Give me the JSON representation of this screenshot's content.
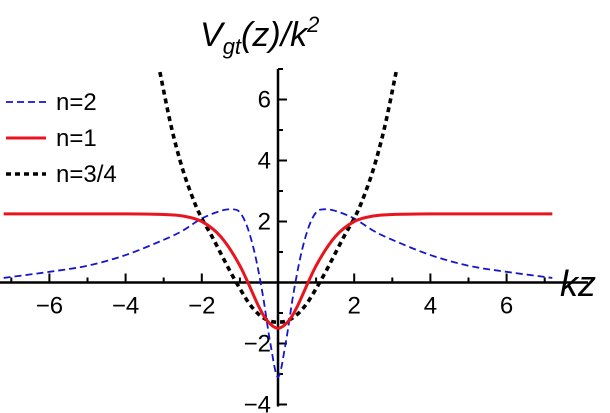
{
  "chart_data": {
    "type": "line",
    "title": "",
    "ylabel": {
      "base": "V",
      "sub": "gt",
      "rest": "(z)/k",
      "sup": "2"
    },
    "xlabel": "kz",
    "xlim": [
      -7.2,
      7.2
    ],
    "ylim": [
      -4,
      7
    ],
    "x_ticks": [
      -6,
      -4,
      -2,
      2,
      4,
      6
    ],
    "x_tick_labels": [
      "−6",
      "−4",
      "−2",
      "2",
      "4",
      "6"
    ],
    "y_ticks": [
      -4,
      -2,
      2,
      4,
      6
    ],
    "y_tick_labels": [
      "−4",
      "−2",
      "2",
      "4",
      "6"
    ],
    "grid": false,
    "legend_position": "top-left",
    "series": [
      {
        "name": "n=2",
        "color": "#1515cc",
        "dash": "dashed",
        "x": [
          -7.2,
          -6,
          -5,
          -4,
          -3,
          -2.5,
          -2,
          -1.5,
          -1.2,
          -1,
          -0.8,
          -0.6,
          -0.4,
          -0.2,
          0,
          0.2,
          0.4,
          0.6,
          0.8,
          1,
          1.2,
          1.5,
          2,
          2.5,
          3,
          4,
          5,
          6,
          7.2
        ],
        "y": [
          0.15,
          0.35,
          0.55,
          0.9,
          1.4,
          1.7,
          2.1,
          2.35,
          2.4,
          2.3,
          1.8,
          0.9,
          -0.4,
          -2.0,
          -3.1,
          -2.0,
          -0.4,
          0.9,
          1.8,
          2.3,
          2.4,
          2.35,
          2.1,
          1.7,
          1.4,
          0.9,
          0.55,
          0.35,
          0.15
        ]
      },
      {
        "name": "n=1",
        "color": "#e8141e",
        "dash": "solid",
        "x": [
          -7.2,
          -6,
          -5,
          -4,
          -3,
          -2.5,
          -2,
          -1.5,
          -1,
          -0.5,
          -0.25,
          0,
          0.25,
          0.5,
          1,
          1.5,
          2,
          2.5,
          3,
          4,
          5,
          6,
          7.2
        ],
        "y": [
          2.25,
          2.25,
          2.25,
          2.25,
          2.23,
          2.18,
          2.0,
          1.5,
          0.55,
          -0.8,
          -1.3,
          -1.5,
          -1.3,
          -0.8,
          0.55,
          1.5,
          2.0,
          2.18,
          2.23,
          2.25,
          2.25,
          2.25,
          2.25
        ]
      },
      {
        "name": "n=3/4",
        "color": "#000000",
        "dash": "dotted",
        "x": [
          -3.1,
          -2.8,
          -2.5,
          -2.2,
          -2,
          -1.75,
          -1.5,
          -1.25,
          -1,
          -0.75,
          -0.5,
          -0.25,
          0,
          0.25,
          0.5,
          0.75,
          1,
          1.25,
          1.5,
          1.75,
          2,
          2.2,
          2.5,
          2.8,
          3.1
        ],
        "y": [
          6.9,
          5.1,
          3.7,
          2.65,
          2.1,
          1.55,
          0.95,
          0.35,
          -0.2,
          -0.7,
          -1.05,
          -1.25,
          -1.3,
          -1.25,
          -1.05,
          -0.7,
          -0.2,
          0.35,
          0.95,
          1.55,
          2.1,
          2.65,
          3.7,
          5.1,
          6.9
        ]
      }
    ]
  }
}
